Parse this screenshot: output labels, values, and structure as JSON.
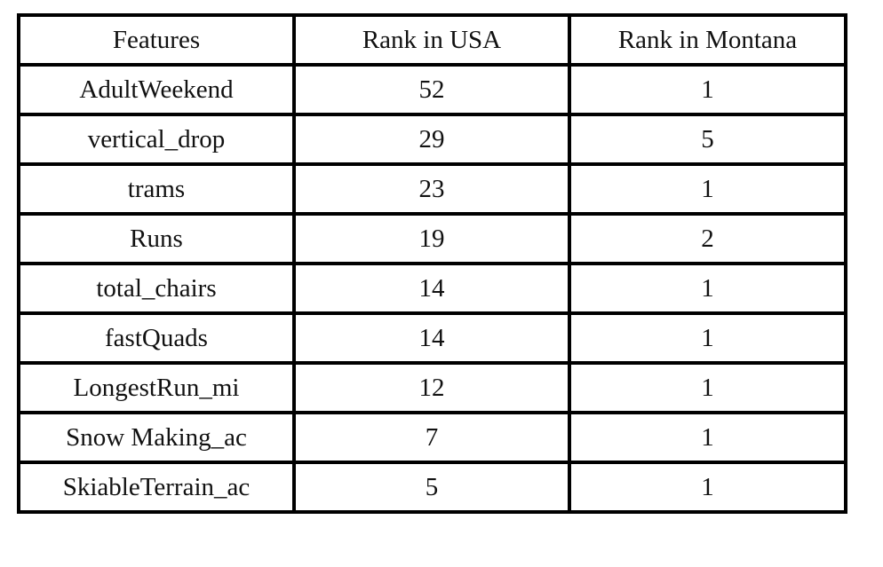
{
  "table": {
    "headers": [
      "Features",
      "Rank in USA",
      "Rank in Montana"
    ],
    "rows": [
      [
        "AdultWeekend",
        "52",
        "1"
      ],
      [
        "vertical_drop",
        "29",
        "5"
      ],
      [
        "trams",
        "23",
        "1"
      ],
      [
        "Runs",
        "19",
        "2"
      ],
      [
        "total_chairs",
        "14",
        "1"
      ],
      [
        "fastQuads",
        "14",
        "1"
      ],
      [
        "LongestRun_mi",
        "12",
        "1"
      ],
      [
        "Snow Making_ac",
        "7",
        "1"
      ],
      [
        "SkiableTerrain_ac",
        "5",
        "1"
      ]
    ]
  }
}
